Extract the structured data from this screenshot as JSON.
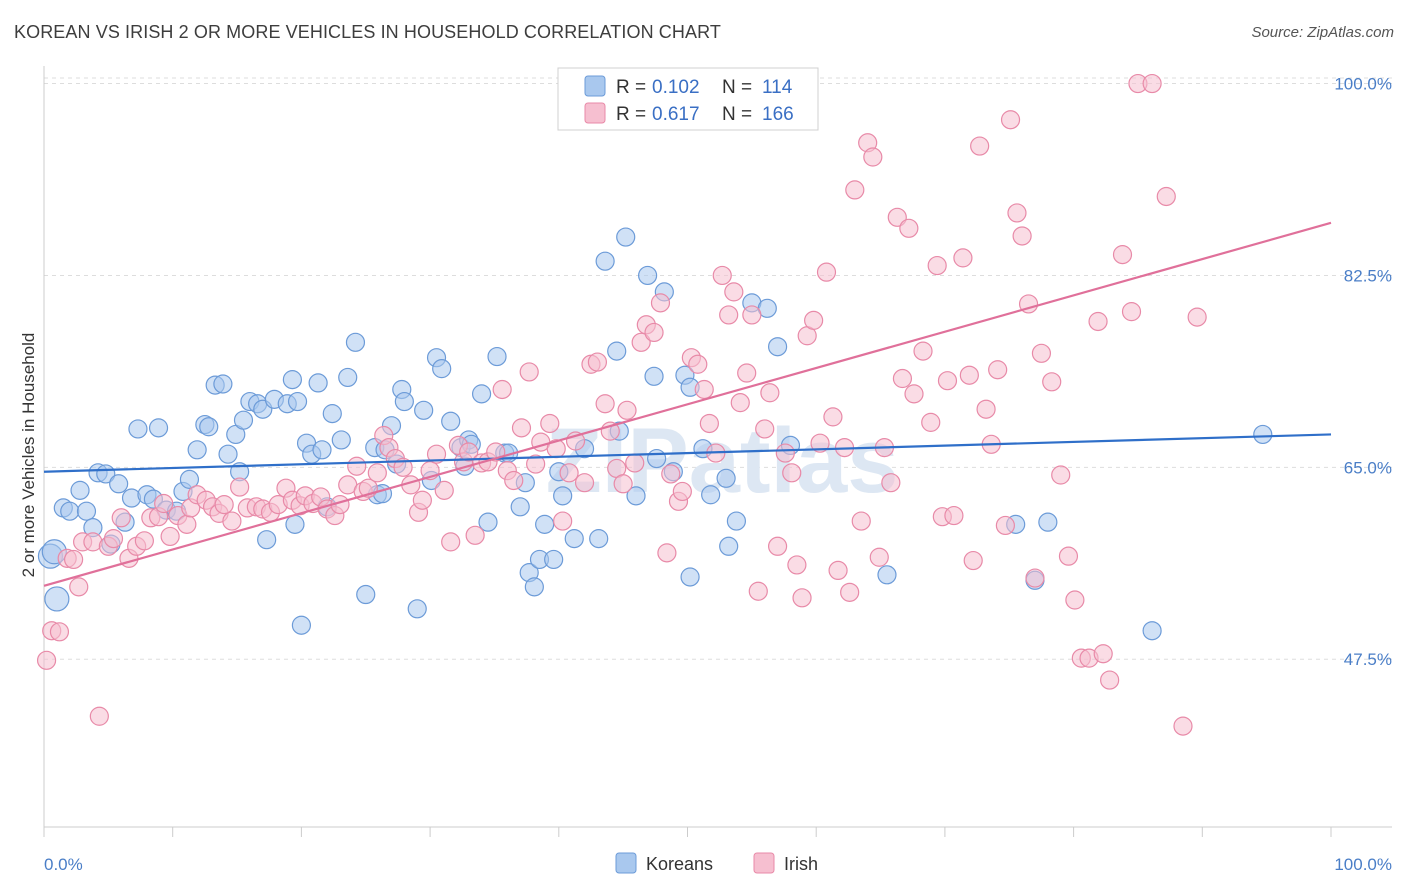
{
  "title": "KOREAN VS IRISH 2 OR MORE VEHICLES IN HOUSEHOLD CORRELATION CHART",
  "source": "Source: ZipAtlas.com",
  "watermark": "ZIPatlas",
  "legend": {
    "rows": [
      {
        "r_label": "R =",
        "r_value": "0.102",
        "n_label": "N =",
        "n_value": "114"
      },
      {
        "r_label": "R =",
        "r_value": "0.617",
        "n_label": "N =",
        "n_value": "166"
      }
    ]
  },
  "bottom_legend": [
    "Koreans",
    "Irish"
  ],
  "colors": {
    "koreans_fill": "#a9c8ee",
    "koreans_stroke": "#6c9bd8",
    "koreans_line": "#2f6fc9",
    "irish_fill": "#f6bfd0",
    "irish_stroke": "#e88aa8",
    "irish_line": "#e0709a",
    "grid": "#dddddd",
    "axis_label": "#4a7ec7"
  },
  "chart_data": {
    "type": "scatter",
    "title": "KOREAN VS IRISH 2 OR MORE VEHICLES IN HOUSEHOLD CORRELATION CHART",
    "xlabel": "",
    "ylabel": "2 or more Vehicles in Household",
    "x_tick_labels": [
      "0.0%",
      "100.0%"
    ],
    "y_tick_labels": [
      "100.0%",
      "82.5%",
      "65.0%",
      "47.5%"
    ],
    "y_tick_values": [
      100.0,
      82.5,
      65.0,
      47.5
    ],
    "xlim": [
      0,
      100
    ],
    "ylim": [
      32.2,
      101.6
    ],
    "grid": true,
    "legend_position": "top-center",
    "series": [
      {
        "name": "Koreans",
        "r": 0.102,
        "n": 114,
        "trend": {
          "x": [
            0,
            100
          ],
          "y": [
            64.6,
            68.0
          ]
        },
        "points": [
          [
            0.5,
            56.9
          ],
          [
            0.8,
            57.3
          ],
          [
            1.0,
            53.0
          ],
          [
            1.5,
            61.3
          ],
          [
            2.0,
            61.0
          ],
          [
            2.8,
            62.9
          ],
          [
            3.3,
            61.0
          ],
          [
            3.8,
            59.5
          ],
          [
            4.2,
            64.5
          ],
          [
            4.8,
            64.4
          ],
          [
            5.2,
            58.0
          ],
          [
            5.8,
            63.5
          ],
          [
            6.3,
            60.0
          ],
          [
            6.8,
            62.2
          ],
          [
            7.3,
            68.5
          ],
          [
            8.0,
            62.5
          ],
          [
            8.5,
            62.1
          ],
          [
            8.9,
            68.6
          ],
          [
            9.5,
            61.1
          ],
          [
            10.3,
            61.0
          ],
          [
            10.8,
            62.8
          ],
          [
            11.3,
            63.9
          ],
          [
            11.9,
            66.6
          ],
          [
            12.5,
            68.9
          ],
          [
            12.8,
            68.7
          ],
          [
            13.3,
            72.5
          ],
          [
            13.9,
            72.6
          ],
          [
            14.3,
            66.2
          ],
          [
            14.9,
            68.0
          ],
          [
            15.2,
            64.6
          ],
          [
            15.5,
            69.3
          ],
          [
            16.0,
            71.0
          ],
          [
            16.6,
            70.8
          ],
          [
            17.0,
            70.3
          ],
          [
            17.3,
            58.4
          ],
          [
            17.9,
            71.2
          ],
          [
            18.9,
            70.8
          ],
          [
            19.3,
            73.0
          ],
          [
            19.5,
            59.8
          ],
          [
            19.7,
            71.0
          ],
          [
            20.0,
            50.6
          ],
          [
            20.4,
            67.2
          ],
          [
            20.8,
            66.2
          ],
          [
            21.3,
            72.7
          ],
          [
            21.6,
            66.6
          ],
          [
            22.0,
            61.4
          ],
          [
            22.4,
            69.9
          ],
          [
            23.1,
            67.5
          ],
          [
            23.6,
            73.2
          ],
          [
            24.2,
            76.4
          ],
          [
            25.0,
            53.4
          ],
          [
            25.7,
            66.8
          ],
          [
            25.9,
            62.5
          ],
          [
            26.3,
            62.6
          ],
          [
            26.5,
            66.6
          ],
          [
            27.0,
            68.8
          ],
          [
            27.4,
            65.3
          ],
          [
            27.8,
            72.1
          ],
          [
            28.0,
            71.0
          ],
          [
            29.0,
            52.1
          ],
          [
            29.5,
            70.2
          ],
          [
            30.1,
            63.8
          ],
          [
            30.5,
            75.0
          ],
          [
            30.9,
            74.0
          ],
          [
            31.6,
            69.2
          ],
          [
            32.4,
            66.8
          ],
          [
            32.7,
            65.1
          ],
          [
            33.0,
            67.5
          ],
          [
            33.2,
            67.1
          ],
          [
            34.0,
            71.7
          ],
          [
            34.5,
            60.0
          ],
          [
            35.2,
            75.1
          ],
          [
            35.8,
            66.3
          ],
          [
            36.1,
            66.3
          ],
          [
            37.0,
            61.4
          ],
          [
            37.4,
            63.6
          ],
          [
            37.7,
            55.4
          ],
          [
            38.1,
            54.1
          ],
          [
            38.5,
            56.6
          ],
          [
            38.9,
            59.8
          ],
          [
            39.6,
            56.6
          ],
          [
            40.0,
            64.6
          ],
          [
            40.3,
            62.4
          ],
          [
            41.2,
            58.5
          ],
          [
            42.0,
            66.7
          ],
          [
            43.1,
            58.5
          ],
          [
            43.6,
            83.8
          ],
          [
            44.5,
            75.6
          ],
          [
            44.7,
            68.3
          ],
          [
            45.2,
            86.0
          ],
          [
            46.0,
            62.4
          ],
          [
            46.9,
            82.5
          ],
          [
            47.4,
            73.3
          ],
          [
            47.6,
            65.8
          ],
          [
            48.2,
            81.0
          ],
          [
            48.9,
            64.6
          ],
          [
            49.8,
            73.4
          ],
          [
            50.2,
            72.3
          ],
          [
            50.2,
            55.0
          ],
          [
            51.2,
            66.7
          ],
          [
            51.8,
            62.5
          ],
          [
            53.0,
            64.0
          ],
          [
            53.2,
            57.8
          ],
          [
            53.8,
            60.1
          ],
          [
            55.0,
            80.0
          ],
          [
            56.2,
            79.5
          ],
          [
            57.0,
            76.0
          ],
          [
            58.0,
            67.0
          ],
          [
            65.5,
            55.2
          ],
          [
            75.5,
            59.8
          ],
          [
            77.0,
            54.7
          ],
          [
            78.0,
            60.0
          ],
          [
            86.1,
            50.1
          ],
          [
            94.7,
            68.0
          ]
        ]
      },
      {
        "name": "Irish",
        "r": 0.617,
        "n": 166,
        "trend": {
          "x": [
            0,
            100
          ],
          "y": [
            54.2,
            87.3
          ]
        },
        "points": [
          [
            0.2,
            47.4
          ],
          [
            0.6,
            50.1
          ],
          [
            1.2,
            50.0
          ],
          [
            1.8,
            56.7
          ],
          [
            2.3,
            56.6
          ],
          [
            2.7,
            54.1
          ],
          [
            3.0,
            58.2
          ],
          [
            3.8,
            58.2
          ],
          [
            4.3,
            42.3
          ],
          [
            5.0,
            57.8
          ],
          [
            5.4,
            58.5
          ],
          [
            6.0,
            60.4
          ],
          [
            6.6,
            56.7
          ],
          [
            7.2,
            57.8
          ],
          [
            7.8,
            58.3
          ],
          [
            8.3,
            60.4
          ],
          [
            8.9,
            60.5
          ],
          [
            9.3,
            61.7
          ],
          [
            9.8,
            58.7
          ],
          [
            10.4,
            60.6
          ],
          [
            11.1,
            59.8
          ],
          [
            11.4,
            61.3
          ],
          [
            11.9,
            62.5
          ],
          [
            12.6,
            62.0
          ],
          [
            13.1,
            61.4
          ],
          [
            13.6,
            60.8
          ],
          [
            14.0,
            61.6
          ],
          [
            14.6,
            60.1
          ],
          [
            15.2,
            63.2
          ],
          [
            15.8,
            61.3
          ],
          [
            16.5,
            61.4
          ],
          [
            17.0,
            61.2
          ],
          [
            17.6,
            60.9
          ],
          [
            18.2,
            61.6
          ],
          [
            18.8,
            63.1
          ],
          [
            19.3,
            62.0
          ],
          [
            19.9,
            61.5
          ],
          [
            20.3,
            62.4
          ],
          [
            20.9,
            61.7
          ],
          [
            21.5,
            62.3
          ],
          [
            22.0,
            61.2
          ],
          [
            22.6,
            60.6
          ],
          [
            23.0,
            61.6
          ],
          [
            23.6,
            63.4
          ],
          [
            24.3,
            65.1
          ],
          [
            24.8,
            62.8
          ],
          [
            25.2,
            63.1
          ],
          [
            25.9,
            64.5
          ],
          [
            26.4,
            67.9
          ],
          [
            26.8,
            66.8
          ],
          [
            27.3,
            65.8
          ],
          [
            27.9,
            65.0
          ],
          [
            28.5,
            63.4
          ],
          [
            29.1,
            60.9
          ],
          [
            29.4,
            62.0
          ],
          [
            30.0,
            64.7
          ],
          [
            30.5,
            66.2
          ],
          [
            31.1,
            62.9
          ],
          [
            31.6,
            58.2
          ],
          [
            32.2,
            67.0
          ],
          [
            32.6,
            65.5
          ],
          [
            33.0,
            66.4
          ],
          [
            33.5,
            58.8
          ],
          [
            34.0,
            65.4
          ],
          [
            34.5,
            65.5
          ],
          [
            35.1,
            66.4
          ],
          [
            35.6,
            72.1
          ],
          [
            36.0,
            64.7
          ],
          [
            36.5,
            63.8
          ],
          [
            37.1,
            68.6
          ],
          [
            37.7,
            73.7
          ],
          [
            38.2,
            65.3
          ],
          [
            38.6,
            67.3
          ],
          [
            39.3,
            69.0
          ],
          [
            39.8,
            66.7
          ],
          [
            40.3,
            60.1
          ],
          [
            40.8,
            64.5
          ],
          [
            41.3,
            67.4
          ],
          [
            42.0,
            63.6
          ],
          [
            42.5,
            74.4
          ],
          [
            43.0,
            74.6
          ],
          [
            43.6,
            70.8
          ],
          [
            44.0,
            68.3
          ],
          [
            44.5,
            64.9
          ],
          [
            45.0,
            63.5
          ],
          [
            45.3,
            70.2
          ],
          [
            45.9,
            65.4
          ],
          [
            46.4,
            76.4
          ],
          [
            46.8,
            78.0
          ],
          [
            47.4,
            77.3
          ],
          [
            47.9,
            80.0
          ],
          [
            48.4,
            57.2
          ],
          [
            48.7,
            64.4
          ],
          [
            49.3,
            61.9
          ],
          [
            49.6,
            62.8
          ],
          [
            50.3,
            75.0
          ],
          [
            50.8,
            74.4
          ],
          [
            51.3,
            72.1
          ],
          [
            51.7,
            69.0
          ],
          [
            52.2,
            66.3
          ],
          [
            52.7,
            82.5
          ],
          [
            53.2,
            78.9
          ],
          [
            53.6,
            81.0
          ],
          [
            54.1,
            70.9
          ],
          [
            54.6,
            73.6
          ],
          [
            55.0,
            78.9
          ],
          [
            55.5,
            53.7
          ],
          [
            56.0,
            68.5
          ],
          [
            56.4,
            71.8
          ],
          [
            57.0,
            57.8
          ],
          [
            57.6,
            66.3
          ],
          [
            58.1,
            64.5
          ],
          [
            58.5,
            56.1
          ],
          [
            58.9,
            53.1
          ],
          [
            59.3,
            77.0
          ],
          [
            59.8,
            78.4
          ],
          [
            60.3,
            67.2
          ],
          [
            60.8,
            82.8
          ],
          [
            61.3,
            69.6
          ],
          [
            61.7,
            55.6
          ],
          [
            62.2,
            66.8
          ],
          [
            62.6,
            53.6
          ],
          [
            63.0,
            90.3
          ],
          [
            63.5,
            60.1
          ],
          [
            64.0,
            94.6
          ],
          [
            64.4,
            93.3
          ],
          [
            64.9,
            56.8
          ],
          [
            65.3,
            66.8
          ],
          [
            65.8,
            63.6
          ],
          [
            66.3,
            87.8
          ],
          [
            66.7,
            73.1
          ],
          [
            67.2,
            86.8
          ],
          [
            67.6,
            71.7
          ],
          [
            68.3,
            75.6
          ],
          [
            68.9,
            69.1
          ],
          [
            69.4,
            83.4
          ],
          [
            69.8,
            60.5
          ],
          [
            70.2,
            72.9
          ],
          [
            70.7,
            60.6
          ],
          [
            71.4,
            84.1
          ],
          [
            71.9,
            73.4
          ],
          [
            72.2,
            56.5
          ],
          [
            72.7,
            94.3
          ],
          [
            73.2,
            70.3
          ],
          [
            73.6,
            67.1
          ],
          [
            74.1,
            73.9
          ],
          [
            74.7,
            59.7
          ],
          [
            75.1,
            96.7
          ],
          [
            75.6,
            88.2
          ],
          [
            76.0,
            86.1
          ],
          [
            76.5,
            79.9
          ],
          [
            77.0,
            54.9
          ],
          [
            77.5,
            75.4
          ],
          [
            78.3,
            72.8
          ],
          [
            79.0,
            64.3
          ],
          [
            79.6,
            56.9
          ],
          [
            80.1,
            52.9
          ],
          [
            80.6,
            47.6
          ],
          [
            81.2,
            47.6
          ],
          [
            81.9,
            78.3
          ],
          [
            82.3,
            48.0
          ],
          [
            82.8,
            45.6
          ],
          [
            83.8,
            84.4
          ],
          [
            84.5,
            79.2
          ],
          [
            85.0,
            100.0
          ],
          [
            86.1,
            100.0
          ],
          [
            87.2,
            89.7
          ],
          [
            88.5,
            41.4
          ],
          [
            89.6,
            78.7
          ]
        ]
      }
    ]
  }
}
